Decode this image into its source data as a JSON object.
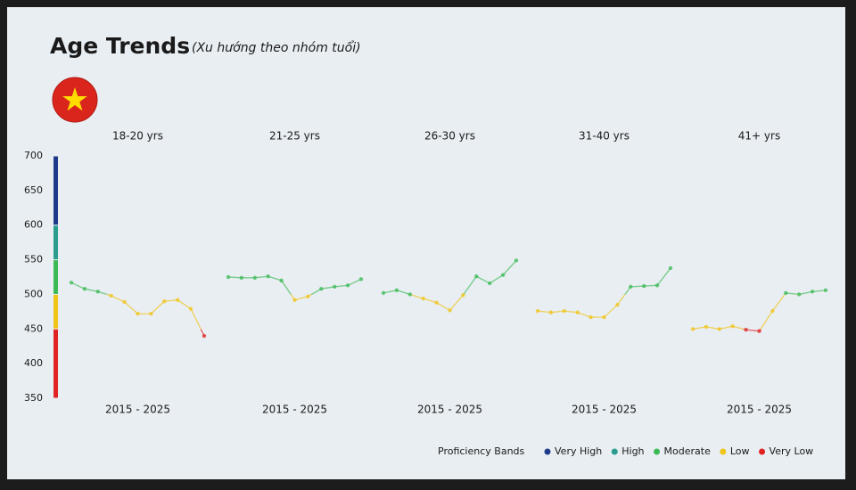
{
  "chart_data": {
    "type": "line",
    "title": "Age Trends",
    "subtitle": "(Xu hướng theo nhóm tuổi)",
    "ylim": [
      350,
      700
    ],
    "yticks": [
      350,
      400,
      450,
      500,
      550,
      600,
      650,
      700
    ],
    "legend_title": "Proficiency Bands",
    "bands": [
      {
        "name": "Very High",
        "color": "#1f3a8a",
        "from": 600,
        "to": 700
      },
      {
        "name": "High",
        "color": "#2a9d8f",
        "from": 550,
        "to": 600
      },
      {
        "name": "Moderate",
        "color": "#3cba54",
        "from": 500,
        "to": 550
      },
      {
        "name": "Low",
        "color": "#f0c419",
        "from": 450,
        "to": 500
      },
      {
        "name": "Very Low",
        "color": "#e02424",
        "from": 350,
        "to": 450
      }
    ],
    "panels": [
      {
        "title": "18-20 yrs",
        "range_label": "2015 - 2025",
        "values": [
          517,
          508,
          504,
          498,
          489,
          472,
          472,
          490,
          492,
          479,
          440
        ]
      },
      {
        "title": "21-25 yrs",
        "range_label": "2015 - 2025",
        "values": [
          525,
          524,
          524,
          526,
          520,
          492,
          497,
          508,
          511,
          513,
          522
        ]
      },
      {
        "title": "26-30 yrs",
        "range_label": "2015 - 2025",
        "values": [
          502,
          506,
          500,
          494,
          488,
          477,
          499,
          526,
          516,
          528,
          549
        ]
      },
      {
        "title": "31-40 yrs",
        "range_label": "2015 - 2025",
        "values": [
          476,
          474,
          476,
          474,
          467,
          467,
          485,
          511,
          512,
          513,
          538
        ]
      },
      {
        "title": "41+ yrs",
        "range_label": "2015 - 2025",
        "values": [
          450,
          453,
          450,
          454,
          449,
          447,
          476,
          502,
          500,
          504,
          506
        ]
      }
    ]
  }
}
